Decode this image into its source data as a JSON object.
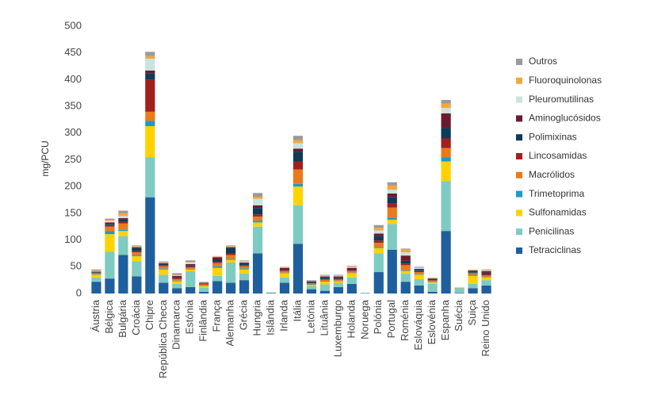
{
  "chart_data": {
    "type": "stacked_bar",
    "ylabel": "mg/PCU",
    "categories": [
      "Áustria",
      "Bélgica",
      "Bulgária",
      "Croácia",
      "Chipre",
      "República Checa",
      "Dinamarca",
      "Estónia",
      "Finlândia",
      "França",
      "Alemanha",
      "Grécia",
      "Hungria",
      "Islândia",
      "Irlanda",
      "Itália",
      "Letónia",
      "Lituânia",
      "Luxemburgo",
      "Holanda",
      "Noruega",
      "Polónia",
      "Portugal",
      "Roménia",
      "Eslováquia",
      "Eslovénia",
      "Espanha",
      "Suécia",
      "Suiça",
      "Reino Unido"
    ],
    "series": [
      {
        "name": "Tetraciclinas",
        "color": "#1f5f9e",
        "values": [
          22,
          28,
          72,
          32,
          180,
          20,
          10,
          12,
          3,
          23,
          20,
          25,
          75,
          1,
          20,
          93,
          8,
          5,
          12,
          18,
          0.5,
          40,
          82,
          22,
          15,
          3,
          117,
          1,
          10,
          15
        ]
      },
      {
        "name": "Penicilinas",
        "color": "#7ecbc1",
        "values": [
          8,
          50,
          35,
          28,
          75,
          15,
          8,
          30,
          8,
          10,
          38,
          12,
          50,
          1,
          10,
          72,
          6,
          12,
          8,
          12,
          1,
          35,
          48,
          15,
          12,
          15,
          93,
          9,
          8,
          10
        ]
      },
      {
        "name": "Sulfonamidas",
        "color": "#ffd200",
        "values": [
          5,
          33,
          10,
          10,
          58,
          10,
          5,
          3,
          3,
          15,
          5,
          8,
          8,
          0,
          8,
          35,
          2,
          5,
          3,
          8,
          0,
          10,
          8,
          5,
          8,
          3,
          37,
          0,
          15,
          5
        ]
      },
      {
        "name": "Trimetoprima",
        "color": "#1a9bc9",
        "values": [
          1,
          6,
          2,
          2,
          10,
          2,
          1,
          1,
          1,
          3,
          2,
          2,
          3,
          0,
          1,
          5,
          1,
          1,
          1,
          1,
          0,
          2,
          3,
          1,
          1,
          1,
          8,
          0,
          2,
          1
        ]
      },
      {
        "name": "Macrólidos",
        "color": "#ea7a1c",
        "values": [
          2,
          8,
          12,
          5,
          17,
          4,
          3,
          3,
          2,
          6,
          7,
          4,
          8,
          0,
          3,
          27,
          2,
          3,
          2,
          3,
          0,
          8,
          20,
          10,
          4,
          2,
          17,
          1,
          3,
          3
        ]
      },
      {
        "name": "Lincosamidas",
        "color": "#a11f1c",
        "values": [
          1,
          3,
          3,
          2,
          60,
          2,
          2,
          2,
          1,
          2,
          3,
          2,
          4,
          0,
          2,
          15,
          1,
          1,
          2,
          2,
          0,
          4,
          7,
          3,
          2,
          1,
          18,
          0,
          1,
          2
        ]
      },
      {
        "name": "Polimixinas",
        "color": "#0e3b57",
        "values": [
          1,
          2,
          5,
          6,
          12,
          2,
          2,
          2,
          1,
          4,
          10,
          3,
          12,
          0,
          2,
          18,
          2,
          3,
          2,
          2,
          0,
          8,
          12,
          5,
          2,
          1,
          20,
          0,
          2,
          3
        ]
      },
      {
        "name": "Aminoglucósidos",
        "color": "#6b1b30",
        "values": [
          1,
          3,
          2,
          2,
          5,
          2,
          2,
          2,
          1,
          5,
          2,
          2,
          5,
          0,
          2,
          6,
          1,
          2,
          2,
          2,
          0,
          5,
          7,
          10,
          2,
          2,
          27,
          0,
          2,
          3
        ]
      },
      {
        "name": "Pleuromutilinas",
        "color": "#c7e4e0",
        "values": [
          1,
          3,
          4,
          1,
          22,
          1,
          1,
          3,
          1,
          1,
          1,
          2,
          12,
          0,
          1,
          10,
          1,
          1,
          1,
          2,
          0,
          6,
          7,
          6,
          2,
          1,
          10,
          0,
          1,
          1
        ]
      },
      {
        "name": "Fluoroquinolonas",
        "color": "#f4a73f",
        "values": [
          1,
          2,
          5,
          1,
          5,
          1,
          1,
          1,
          0,
          1,
          1,
          1,
          4,
          0,
          1,
          6,
          0,
          1,
          1,
          1,
          0,
          5,
          8,
          5,
          1,
          1,
          8,
          0,
          1,
          1
        ]
      },
      {
        "name": "Outros",
        "color": "#9a9a9a",
        "values": [
          2,
          2,
          5,
          1,
          8,
          1,
          3,
          3,
          1,
          0,
          1,
          1,
          7,
          0,
          0,
          8,
          1,
          1,
          1,
          1,
          0,
          5,
          6,
          2,
          1,
          0,
          7,
          0,
          0,
          1
        ]
      }
    ],
    "ylim": [
      0,
      500
    ],
    "yticks": [
      0,
      50,
      100,
      150,
      200,
      250,
      300,
      350,
      400,
      450,
      500
    ],
    "grid": false
  }
}
